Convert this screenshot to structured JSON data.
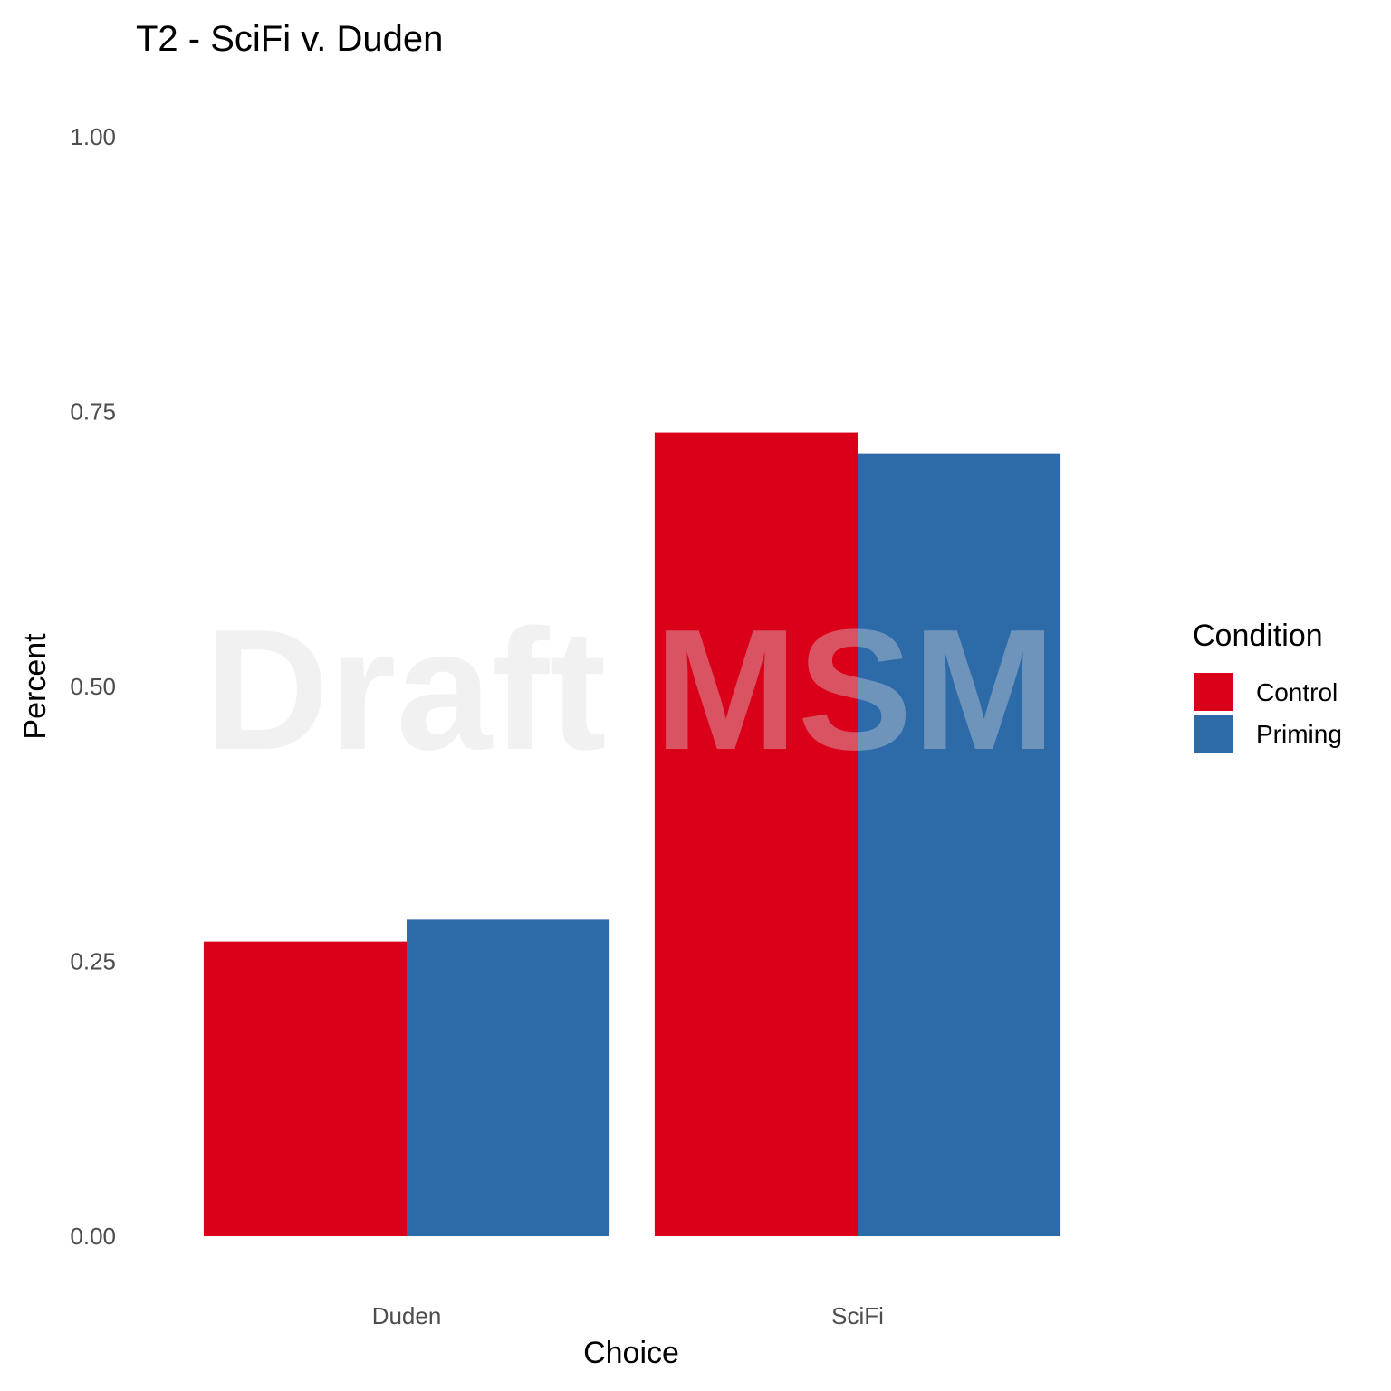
{
  "chart_data": {
    "type": "bar",
    "title": "T2 - SciFi v. Duden",
    "xlabel": "Choice",
    "ylabel": "Percent",
    "categories": [
      "Duden",
      "SciFi"
    ],
    "series": [
      {
        "name": "Control",
        "color": "#DA001A",
        "values": [
          0.268,
          0.731
        ]
      },
      {
        "name": "Priming",
        "color": "#2D6AA8",
        "values": [
          0.288,
          0.712
        ]
      }
    ],
    "ylim": [
      0,
      1
    ],
    "yticks": [
      "0.00",
      "0.25",
      "0.50",
      "0.75",
      "1.00"
    ],
    "legend": {
      "title": "Condition",
      "position": "right"
    },
    "grid": false,
    "watermark": "Draft MSM"
  }
}
